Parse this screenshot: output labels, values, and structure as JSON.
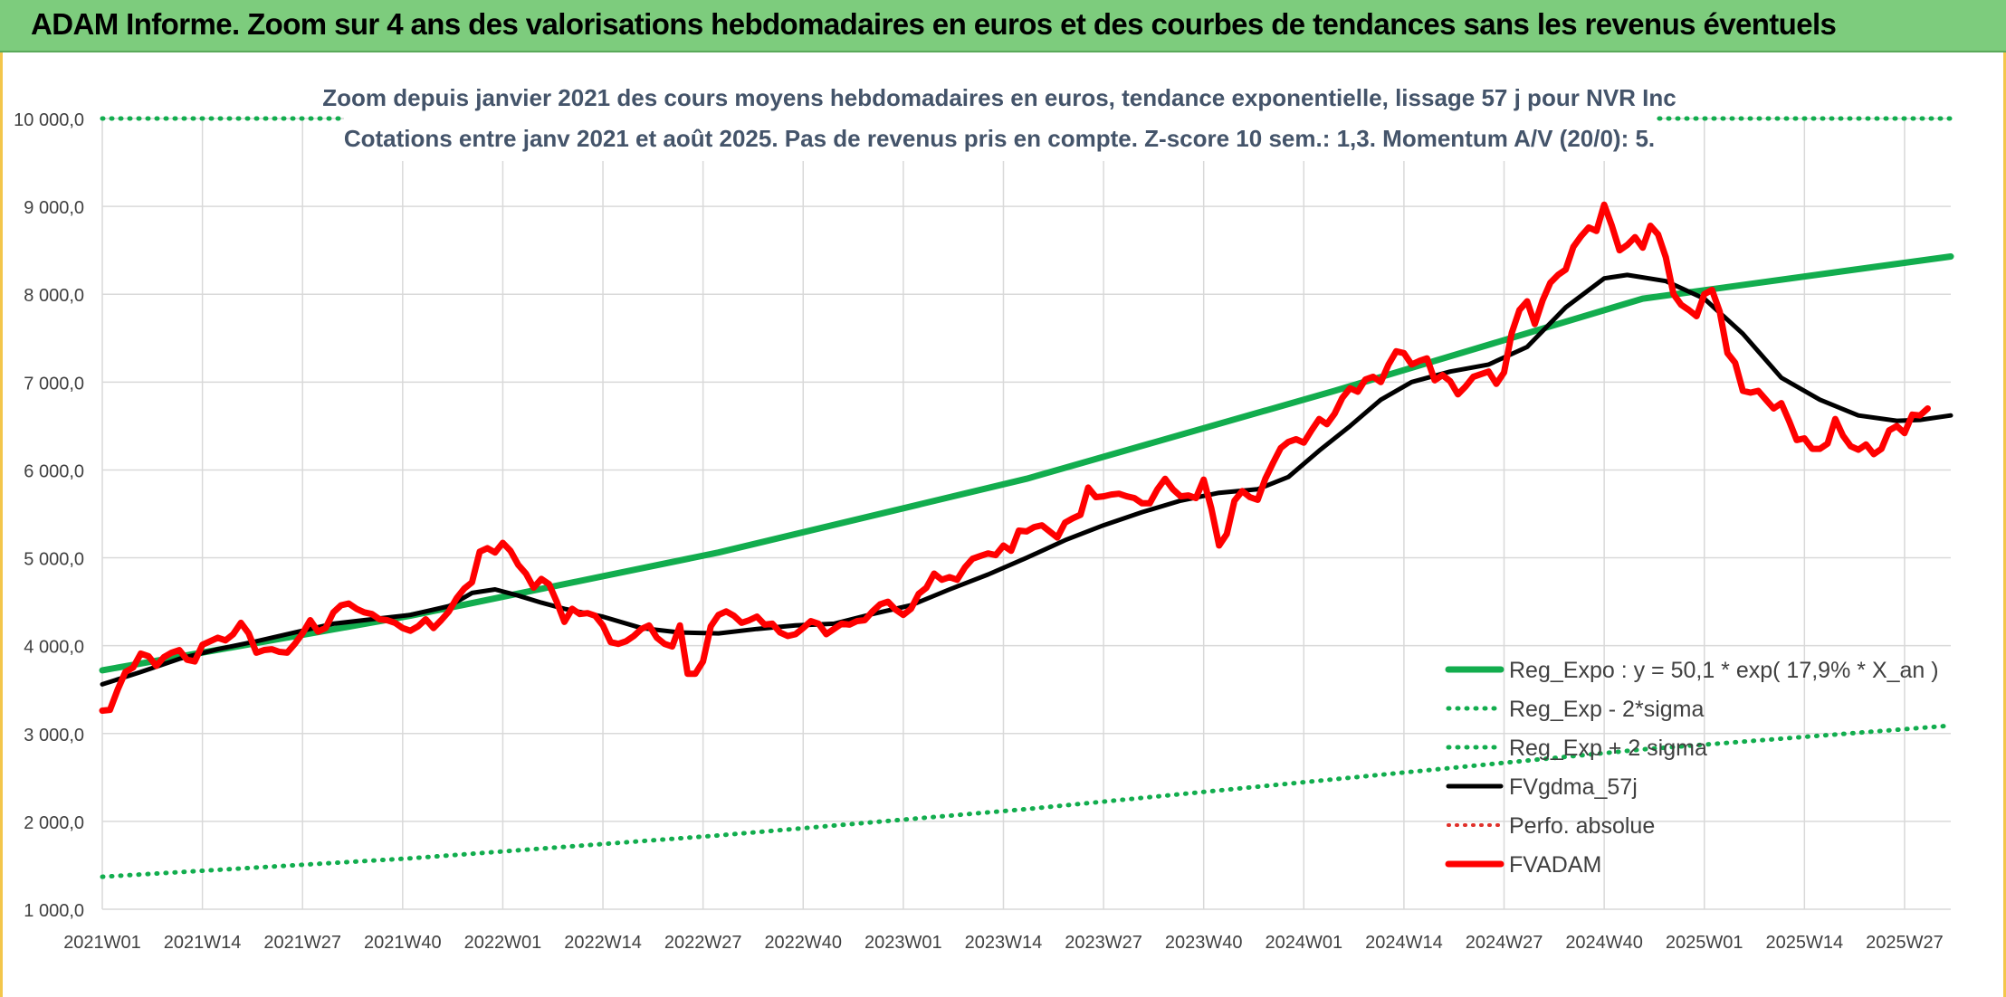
{
  "banner": {
    "title": "ADAM Informe. Zoom sur 4 ans des valorisations hebdomadaires en euros et des courbes de tendances sans les revenus éventuels"
  },
  "colors": {
    "banner_bg": "#7dcc7d",
    "reg_expo": "#12ad4e",
    "fvgdma": "#000000",
    "fvadam": "#ff0000",
    "perfo": "#e0302a",
    "grid": "#d9d9d9"
  },
  "chart_data": {
    "type": "line",
    "title_line1": "Zoom depuis janvier 2021 des cours moyens hebdomadaires en euros, tendance exponentielle, lissage 57 j pour NVR Inc",
    "title_line2": "Cotations entre janv 2021 et août 2025. Pas de revenus pris en compte. Z-score 10 sem.: 1,3. Momentum A/V (20/0): 5.",
    "ylim": [
      1000,
      10000
    ],
    "grid": true,
    "legend_position": "bottom-right",
    "x_range_weeks": [
      0,
      240
    ],
    "y_tick_labels": [
      "1 000,0",
      "2 000,0",
      "3 000,0",
      "4 000,0",
      "5 000,0",
      "6 000,0",
      "7 000,0",
      "8 000,0",
      "9 000,0",
      "10 000,0"
    ],
    "x_tick_labels": [
      "2021W01",
      "2021W14",
      "2021W27",
      "2021W40",
      "2022W01",
      "2022W14",
      "2022W27",
      "2022W40",
      "2023W01",
      "2023W14",
      "2023W27",
      "2023W40",
      "2024W01",
      "2024W14",
      "2024W27",
      "2024W40",
      "2025W01",
      "2025W14",
      "2025W27"
    ],
    "series": [
      {
        "name": "Reg_Expo : y = 50,1 * exp( 17,9% *  X_an )",
        "style": "solid",
        "points": [
          [
            0,
            3720
          ],
          [
            40,
            4340
          ],
          [
            80,
            5060
          ],
          [
            120,
            5900
          ],
          [
            160,
            6900
          ],
          [
            200,
            7950
          ],
          [
            240,
            8430
          ]
        ]
      },
      {
        "name": "Reg_Exp - 2*sigma",
        "style": "dotted",
        "points": [
          [
            0,
            1370
          ],
          [
            40,
            1580
          ],
          [
            80,
            1840
          ],
          [
            120,
            2140
          ],
          [
            160,
            2480
          ],
          [
            200,
            2820
          ],
          [
            240,
            3090
          ]
        ]
      },
      {
        "name": "Reg_Exp + 2 sigma",
        "style": "dotted",
        "points": [
          [
            0,
            10000
          ],
          [
            240,
            10000
          ]
        ]
      },
      {
        "name": "FVgdma_57j",
        "style": "solid",
        "points": [
          [
            0,
            3560
          ],
          [
            5,
            3700
          ],
          [
            10,
            3850
          ],
          [
            15,
            3960
          ],
          [
            20,
            4050
          ],
          [
            25,
            4150
          ],
          [
            30,
            4250
          ],
          [
            35,
            4300
          ],
          [
            40,
            4350
          ],
          [
            45,
            4450
          ],
          [
            48,
            4600
          ],
          [
            51,
            4640
          ],
          [
            54,
            4570
          ],
          [
            57,
            4490
          ],
          [
            60,
            4420
          ],
          [
            65,
            4330
          ],
          [
            70,
            4200
          ],
          [
            75,
            4150
          ],
          [
            80,
            4140
          ],
          [
            85,
            4190
          ],
          [
            90,
            4230
          ],
          [
            95,
            4250
          ],
          [
            100,
            4360
          ],
          [
            105,
            4460
          ],
          [
            110,
            4640
          ],
          [
            115,
            4810
          ],
          [
            120,
            5000
          ],
          [
            125,
            5200
          ],
          [
            130,
            5370
          ],
          [
            135,
            5520
          ],
          [
            140,
            5650
          ],
          [
            145,
            5740
          ],
          [
            150,
            5780
          ],
          [
            154,
            5920
          ],
          [
            158,
            6220
          ],
          [
            162,
            6500
          ],
          [
            166,
            6800
          ],
          [
            170,
            7000
          ],
          [
            175,
            7120
          ],
          [
            180,
            7200
          ],
          [
            185,
            7400
          ],
          [
            190,
            7850
          ],
          [
            195,
            8180
          ],
          [
            198,
            8220
          ],
          [
            203,
            8150
          ],
          [
            208,
            7950
          ],
          [
            213,
            7550
          ],
          [
            218,
            7050
          ],
          [
            223,
            6800
          ],
          [
            228,
            6620
          ],
          [
            233,
            6560
          ],
          [
            236,
            6570
          ],
          [
            240,
            6620
          ]
        ]
      },
      {
        "name": "Perfo. absolue",
        "style": "dotted",
        "points": []
      },
      {
        "name": "FVADAM",
        "style": "solid",
        "points": [
          [
            0,
            3260
          ],
          [
            1,
            3270
          ],
          [
            2,
            3500
          ],
          [
            3,
            3700
          ],
          [
            4,
            3750
          ],
          [
            5,
            3910
          ],
          [
            6,
            3880
          ],
          [
            7,
            3770
          ],
          [
            8,
            3870
          ],
          [
            9,
            3920
          ],
          [
            10,
            3950
          ],
          [
            11,
            3840
          ],
          [
            12,
            3820
          ],
          [
            13,
            4010
          ],
          [
            14,
            4050
          ],
          [
            15,
            4090
          ],
          [
            16,
            4060
          ],
          [
            17,
            4130
          ],
          [
            18,
            4260
          ],
          [
            19,
            4140
          ],
          [
            20,
            3920
          ],
          [
            21,
            3950
          ],
          [
            22,
            3960
          ],
          [
            23,
            3930
          ],
          [
            24,
            3920
          ],
          [
            25,
            4020
          ],
          [
            26,
            4140
          ],
          [
            27,
            4290
          ],
          [
            28,
            4160
          ],
          [
            29,
            4200
          ],
          [
            30,
            4380
          ],
          [
            31,
            4460
          ],
          [
            32,
            4480
          ],
          [
            33,
            4420
          ],
          [
            34,
            4380
          ],
          [
            35,
            4360
          ],
          [
            36,
            4300
          ],
          [
            37,
            4290
          ],
          [
            38,
            4260
          ],
          [
            39,
            4200
          ],
          [
            40,
            4170
          ],
          [
            41,
            4220
          ],
          [
            42,
            4300
          ],
          [
            43,
            4200
          ],
          [
            44,
            4290
          ],
          [
            45,
            4390
          ],
          [
            46,
            4540
          ],
          [
            47,
            4650
          ],
          [
            48,
            4720
          ],
          [
            49,
            5070
          ],
          [
            50,
            5110
          ],
          [
            51,
            5060
          ],
          [
            52,
            5170
          ],
          [
            53,
            5080
          ],
          [
            54,
            4920
          ],
          [
            55,
            4820
          ],
          [
            56,
            4660
          ],
          [
            57,
            4760
          ],
          [
            58,
            4700
          ],
          [
            59,
            4500
          ],
          [
            60,
            4270
          ],
          [
            61,
            4420
          ],
          [
            62,
            4360
          ],
          [
            63,
            4370
          ],
          [
            64,
            4340
          ],
          [
            65,
            4230
          ],
          [
            66,
            4040
          ],
          [
            67,
            4020
          ],
          [
            68,
            4050
          ],
          [
            69,
            4110
          ],
          [
            70,
            4190
          ],
          [
            71,
            4230
          ],
          [
            72,
            4090
          ],
          [
            73,
            4020
          ],
          [
            74,
            3990
          ],
          [
            75,
            4230
          ],
          [
            76,
            3680
          ],
          [
            77,
            3680
          ],
          [
            78,
            3820
          ],
          [
            79,
            4220
          ],
          [
            80,
            4350
          ],
          [
            81,
            4390
          ],
          [
            82,
            4340
          ],
          [
            83,
            4260
          ],
          [
            84,
            4290
          ],
          [
            85,
            4330
          ],
          [
            86,
            4240
          ],
          [
            87,
            4250
          ],
          [
            88,
            4150
          ],
          [
            89,
            4110
          ],
          [
            90,
            4130
          ],
          [
            91,
            4200
          ],
          [
            92,
            4280
          ],
          [
            93,
            4250
          ],
          [
            94,
            4130
          ],
          [
            95,
            4190
          ],
          [
            96,
            4250
          ],
          [
            97,
            4240
          ],
          [
            98,
            4280
          ],
          [
            99,
            4290
          ],
          [
            100,
            4390
          ],
          [
            101,
            4470
          ],
          [
            102,
            4500
          ],
          [
            103,
            4410
          ],
          [
            104,
            4350
          ],
          [
            105,
            4420
          ],
          [
            106,
            4590
          ],
          [
            107,
            4660
          ],
          [
            108,
            4820
          ],
          [
            109,
            4750
          ],
          [
            110,
            4780
          ],
          [
            111,
            4750
          ],
          [
            112,
            4890
          ],
          [
            113,
            4990
          ],
          [
            114,
            5020
          ],
          [
            115,
            5050
          ],
          [
            116,
            5030
          ],
          [
            117,
            5140
          ],
          [
            118,
            5080
          ],
          [
            119,
            5310
          ],
          [
            120,
            5300
          ],
          [
            121,
            5350
          ],
          [
            122,
            5370
          ],
          [
            123,
            5300
          ],
          [
            124,
            5230
          ],
          [
            125,
            5400
          ],
          [
            126,
            5450
          ],
          [
            127,
            5490
          ],
          [
            128,
            5800
          ],
          [
            129,
            5690
          ],
          [
            130,
            5700
          ],
          [
            131,
            5720
          ],
          [
            132,
            5730
          ],
          [
            133,
            5700
          ],
          [
            134,
            5680
          ],
          [
            135,
            5620
          ],
          [
            136,
            5620
          ],
          [
            137,
            5780
          ],
          [
            138,
            5900
          ],
          [
            139,
            5780
          ],
          [
            140,
            5700
          ],
          [
            141,
            5710
          ],
          [
            142,
            5680
          ],
          [
            143,
            5890
          ],
          [
            144,
            5560
          ],
          [
            145,
            5140
          ],
          [
            146,
            5270
          ],
          [
            147,
            5650
          ],
          [
            148,
            5760
          ],
          [
            149,
            5690
          ],
          [
            150,
            5660
          ],
          [
            151,
            5900
          ],
          [
            152,
            6080
          ],
          [
            153,
            6250
          ],
          [
            154,
            6320
          ],
          [
            155,
            6350
          ],
          [
            156,
            6310
          ],
          [
            157,
            6450
          ],
          [
            158,
            6580
          ],
          [
            159,
            6520
          ],
          [
            160,
            6640
          ],
          [
            161,
            6820
          ],
          [
            162,
            6930
          ],
          [
            163,
            6890
          ],
          [
            164,
            7030
          ],
          [
            165,
            7060
          ],
          [
            166,
            7000
          ],
          [
            167,
            7200
          ],
          [
            168,
            7350
          ],
          [
            169,
            7330
          ],
          [
            170,
            7200
          ],
          [
            171,
            7240
          ],
          [
            172,
            7270
          ],
          [
            173,
            7020
          ],
          [
            174,
            7080
          ],
          [
            175,
            7010
          ],
          [
            176,
            6860
          ],
          [
            177,
            6950
          ],
          [
            178,
            7060
          ],
          [
            179,
            7090
          ],
          [
            180,
            7120
          ],
          [
            181,
            6980
          ],
          [
            182,
            7110
          ],
          [
            183,
            7560
          ],
          [
            184,
            7820
          ],
          [
            185,
            7920
          ],
          [
            186,
            7660
          ],
          [
            187,
            7930
          ],
          [
            188,
            8130
          ],
          [
            189,
            8220
          ],
          [
            190,
            8280
          ],
          [
            191,
            8540
          ],
          [
            192,
            8660
          ],
          [
            193,
            8760
          ],
          [
            194,
            8720
          ],
          [
            195,
            9020
          ],
          [
            196,
            8780
          ],
          [
            197,
            8500
          ],
          [
            198,
            8560
          ],
          [
            199,
            8650
          ],
          [
            200,
            8530
          ],
          [
            201,
            8780
          ],
          [
            202,
            8680
          ],
          [
            203,
            8420
          ],
          [
            204,
            8000
          ],
          [
            205,
            7880
          ],
          [
            206,
            7820
          ],
          [
            207,
            7750
          ],
          [
            208,
            8000
          ],
          [
            209,
            8050
          ],
          [
            210,
            7800
          ],
          [
            211,
            7330
          ],
          [
            212,
            7220
          ],
          [
            213,
            6900
          ],
          [
            214,
            6880
          ],
          [
            215,
            6900
          ],
          [
            216,
            6800
          ],
          [
            217,
            6700
          ],
          [
            218,
            6760
          ],
          [
            219,
            6560
          ],
          [
            220,
            6340
          ],
          [
            221,
            6360
          ],
          [
            222,
            6240
          ],
          [
            223,
            6240
          ],
          [
            224,
            6300
          ],
          [
            225,
            6580
          ],
          [
            226,
            6390
          ],
          [
            227,
            6270
          ],
          [
            228,
            6230
          ],
          [
            229,
            6290
          ],
          [
            230,
            6180
          ],
          [
            231,
            6240
          ],
          [
            232,
            6450
          ],
          [
            233,
            6500
          ],
          [
            234,
            6420
          ],
          [
            235,
            6630
          ],
          [
            236,
            6620
          ],
          [
            237,
            6700
          ]
        ]
      }
    ]
  }
}
